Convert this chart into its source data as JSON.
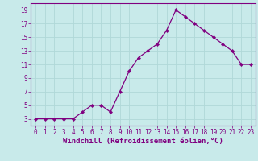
{
  "x": [
    0,
    1,
    2,
    3,
    4,
    5,
    6,
    7,
    8,
    9,
    10,
    11,
    12,
    13,
    14,
    15,
    16,
    17,
    18,
    19,
    20,
    21,
    22,
    23
  ],
  "y": [
    3,
    3,
    3,
    3,
    3,
    4,
    5,
    5,
    4,
    7,
    10,
    12,
    13,
    14,
    16,
    19,
    18,
    17,
    16,
    15,
    14,
    13,
    11,
    11
  ],
  "line_color": "#800080",
  "marker_color": "#800080",
  "bg_color": "#c8eaea",
  "grid_color": "#b0d8d8",
  "xlabel": "Windchill (Refroidissement éolien,°C)",
  "xlabel_color": "#800080",
  "tick_color": "#800080",
  "spine_color": "#800080",
  "ylim": [
    2,
    20
  ],
  "xlim": [
    -0.5,
    23.5
  ],
  "yticks": [
    3,
    5,
    7,
    9,
    11,
    13,
    15,
    17,
    19
  ],
  "xticks": [
    0,
    1,
    2,
    3,
    4,
    5,
    6,
    7,
    8,
    9,
    10,
    11,
    12,
    13,
    14,
    15,
    16,
    17,
    18,
    19,
    20,
    21,
    22,
    23
  ],
  "tick_fontsize": 5.5,
  "xlabel_fontsize": 6.5,
  "linewidth": 0.9,
  "markersize": 2.2
}
